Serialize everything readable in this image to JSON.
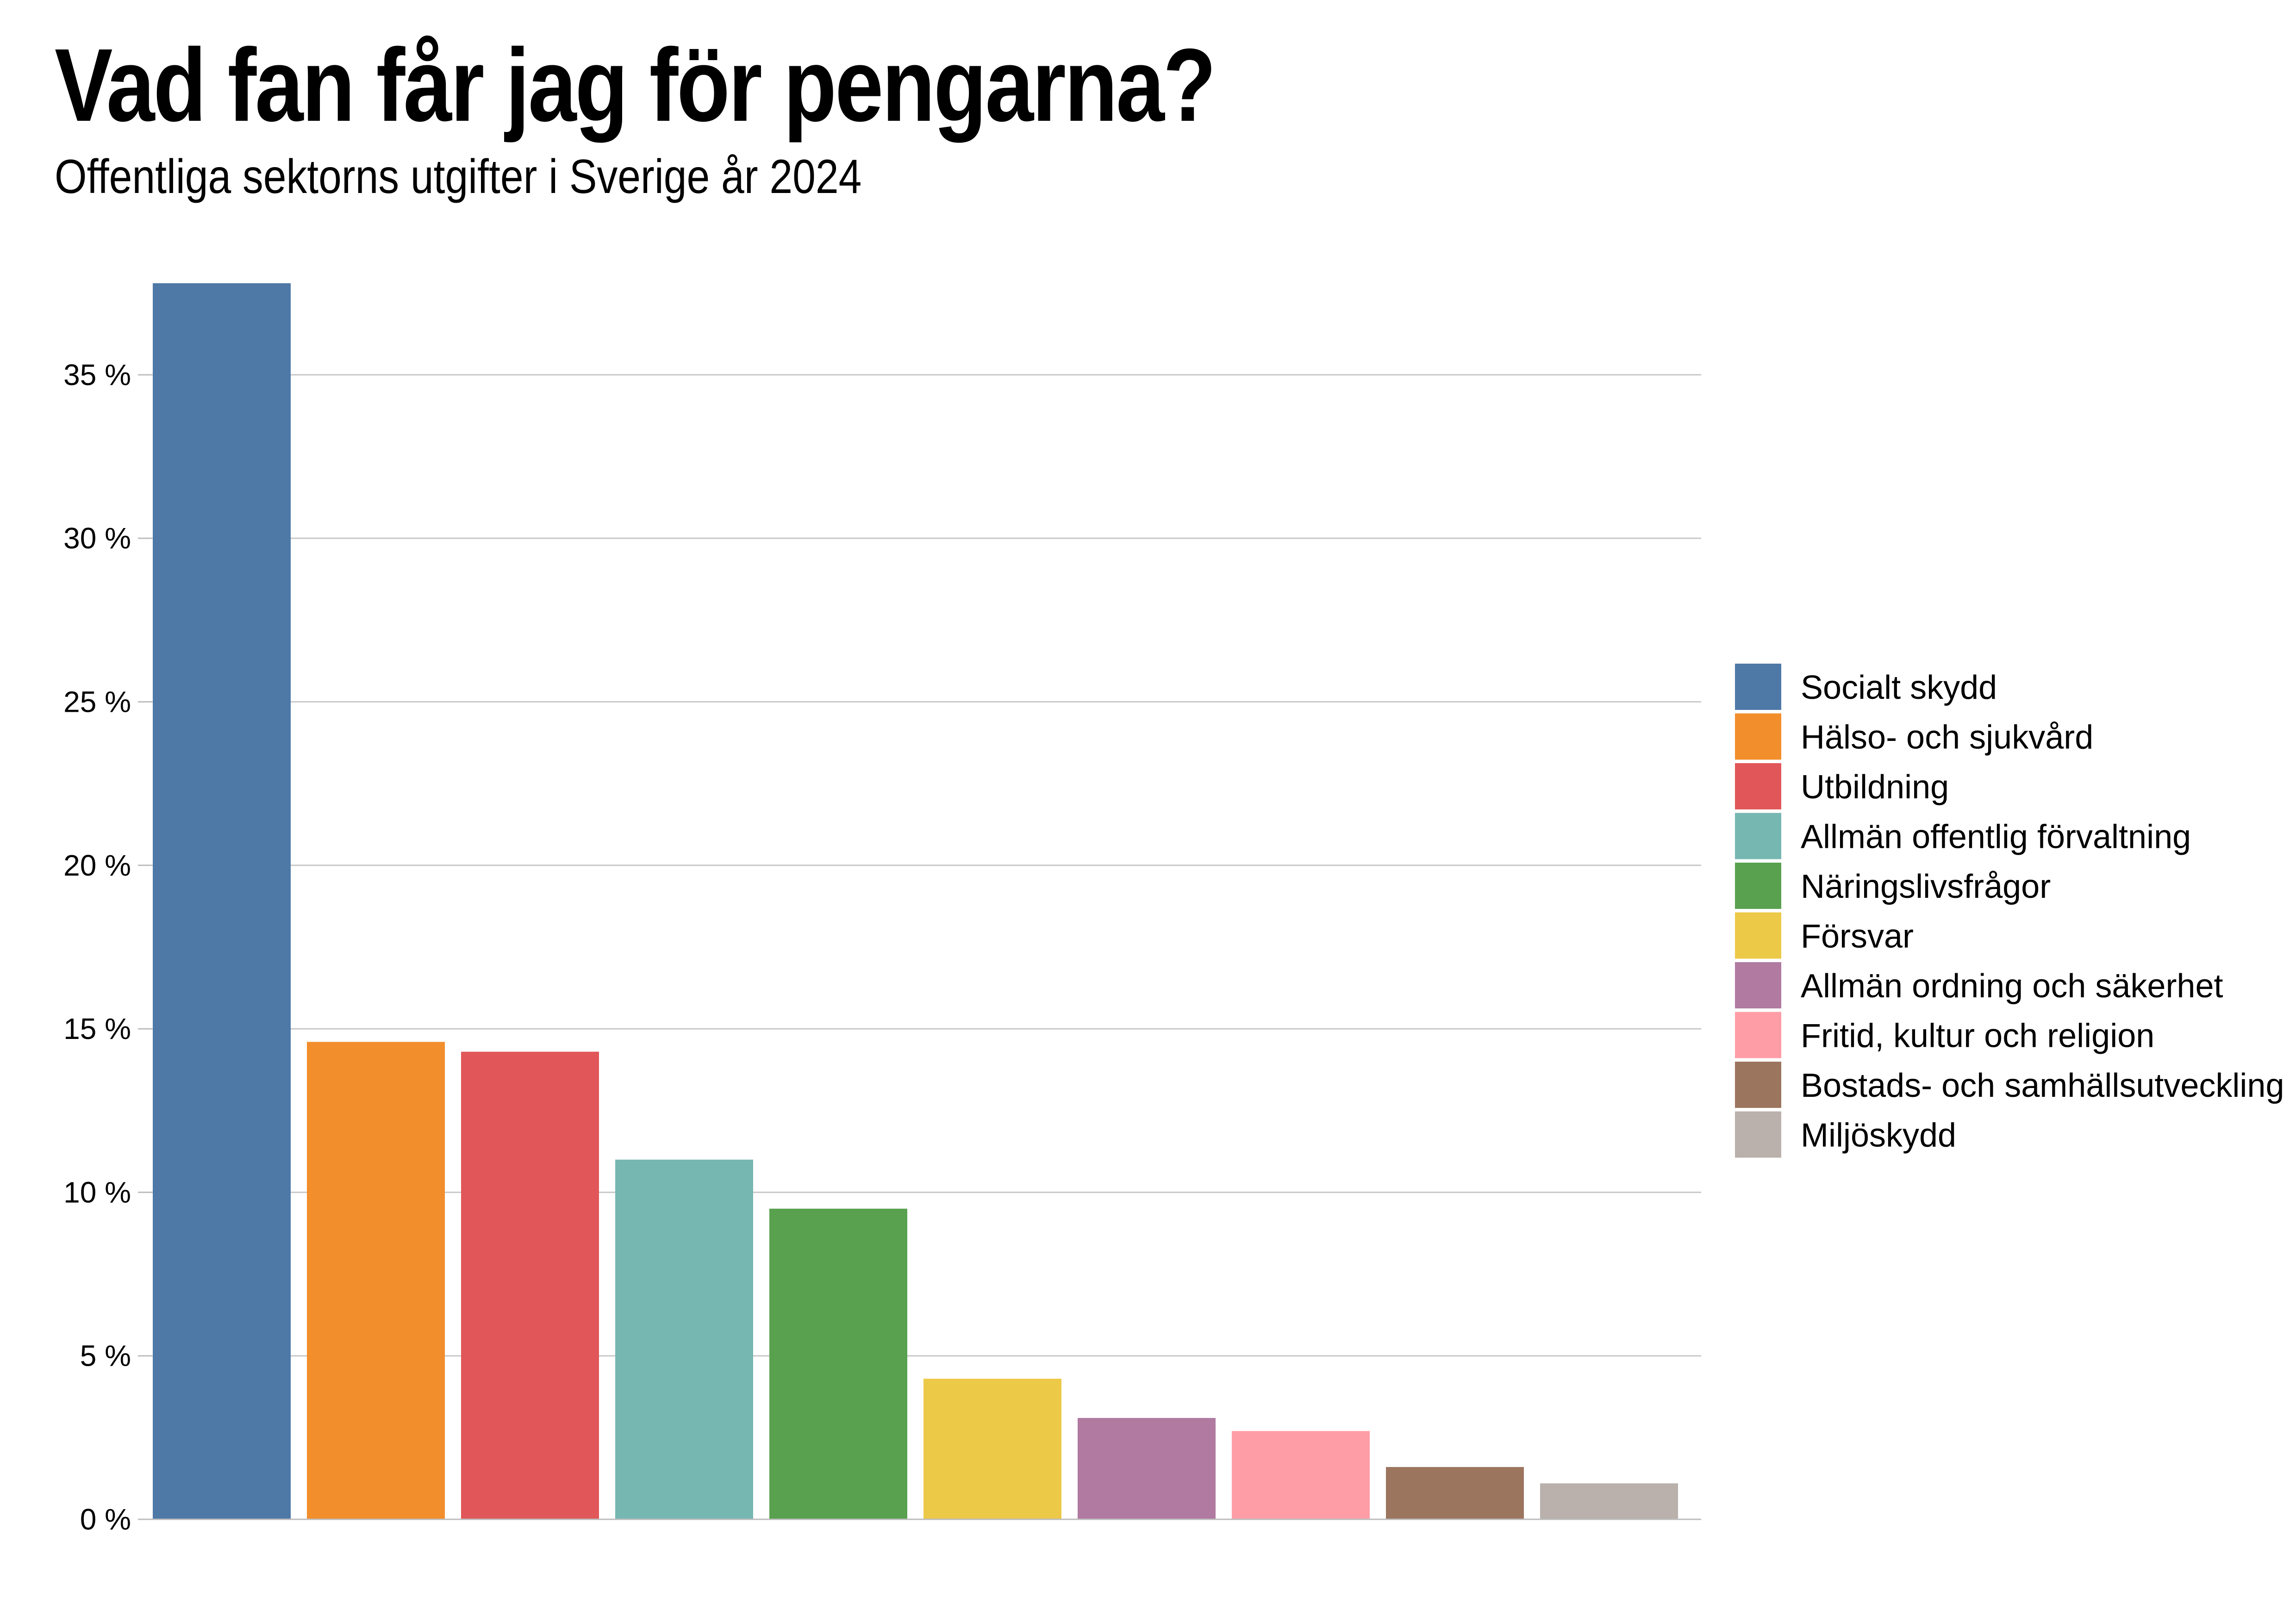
{
  "title": "Vad fan får jag för pengarna?",
  "subtitle": "Offentliga sektorns utgifter i Sverige år 2024",
  "chart_data": {
    "type": "bar",
    "title": "Vad fan får jag för pengarna?",
    "subtitle": "Offentliga sektorns utgifter i Sverige år 2024",
    "xlabel": "",
    "ylabel": "",
    "ylim": [
      0,
      37.8
    ],
    "yticks": [
      0,
      5,
      10,
      15,
      20,
      25,
      30,
      35
    ],
    "ytick_labels": [
      "0 %",
      "5 %",
      "10 %",
      "15 %",
      "20 %",
      "25 %",
      "30 %",
      "35 %"
    ],
    "grid": true,
    "legend_position": "right",
    "categories": [
      "Socialt skydd",
      "Hälso- och sjukvård",
      "Utbildning",
      "Allmän offentlig förvaltning",
      "Näringslivsfrågor",
      "Försvar",
      "Allmän ordning och säkerhet",
      "Fritid, kultur och religion",
      "Bostads- och samhällsutveckling",
      "Miljöskydd"
    ],
    "values": [
      37.8,
      14.6,
      14.3,
      11.0,
      9.5,
      4.3,
      3.1,
      2.7,
      1.6,
      1.1
    ],
    "colors": [
      "#4e79a7",
      "#f28e2b",
      "#e15759",
      "#76b7b2",
      "#59a14f",
      "#edc948",
      "#b07aa1",
      "#ff9da7",
      "#9c755f",
      "#bab0ac"
    ]
  }
}
